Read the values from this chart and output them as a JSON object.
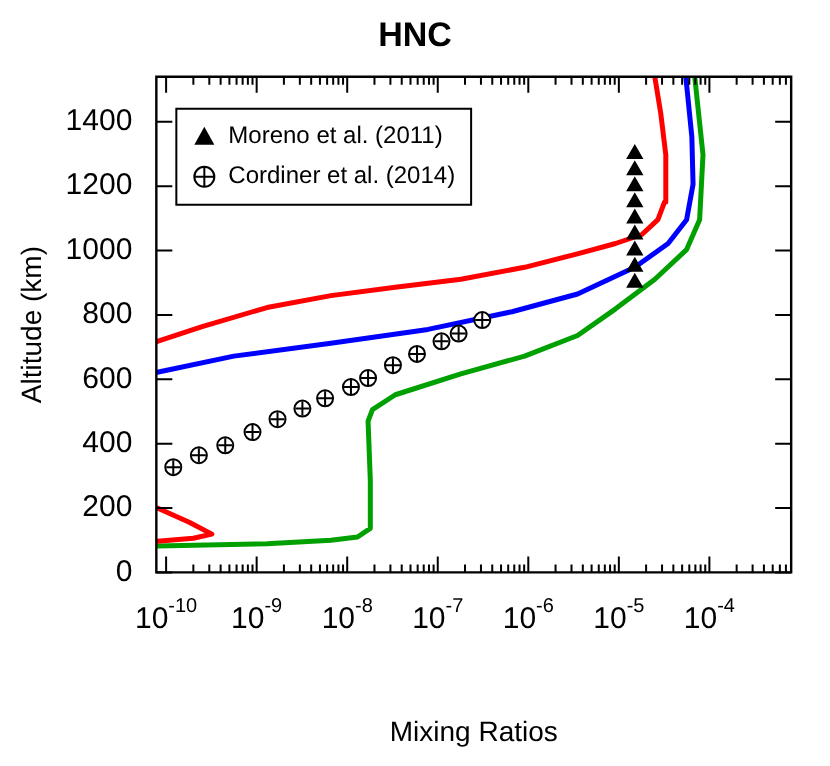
{
  "chart_data": {
    "type": "line",
    "title": "HNC",
    "xlabel": "Mixing Ratios",
    "ylabel": "Altitude (km)",
    "log": "x",
    "xlim": [
      7.8e-11,
      0.0008
    ],
    "ylim": [
      0,
      1540
    ],
    "xticks": [
      {
        "value": 1e-10,
        "label": "10$^{-10}$"
      },
      {
        "value": 2e-10,
        "label": null
      },
      {
        "value": 3e-10,
        "label": null
      },
      {
        "value": 4e-10,
        "label": null
      },
      {
        "value": 5e-10,
        "label": null
      },
      {
        "value": 6e-10,
        "label": null
      },
      {
        "value": 7e-10,
        "label": null
      },
      {
        "value": 8e-10,
        "label": null
      },
      {
        "value": 9e-10,
        "label": null
      },
      {
        "value": 1e-09,
        "label": "10$^{-9}$"
      },
      {
        "value": 2e-09,
        "label": null
      },
      {
        "value": 3e-09,
        "label": null
      },
      {
        "value": 4e-09,
        "label": null
      },
      {
        "value": 5e-09,
        "label": null
      },
      {
        "value": 6e-09,
        "label": null
      },
      {
        "value": 7e-09,
        "label": null
      },
      {
        "value": 8e-09,
        "label": null
      },
      {
        "value": 9e-09,
        "label": null
      },
      {
        "value": 1e-08,
        "label": "10$^{-8}$"
      },
      {
        "value": 2e-08,
        "label": null
      },
      {
        "value": 3e-08,
        "label": null
      },
      {
        "value": 4e-08,
        "label": null
      },
      {
        "value": 5e-08,
        "label": null
      },
      {
        "value": 6e-08,
        "label": null
      },
      {
        "value": 7e-08,
        "label": null
      },
      {
        "value": 8e-08,
        "label": null
      },
      {
        "value": 9e-08,
        "label": null
      },
      {
        "value": 1e-07,
        "label": "10$^{-7}$"
      },
      {
        "value": 2e-07,
        "label": null
      },
      {
        "value": 3e-07,
        "label": null
      },
      {
        "value": 4e-07,
        "label": null
      },
      {
        "value": 5e-07,
        "label": null
      },
      {
        "value": 6e-07,
        "label": null
      },
      {
        "value": 7e-07,
        "label": null
      },
      {
        "value": 8e-07,
        "label": null
      },
      {
        "value": 9e-07,
        "label": null
      },
      {
        "value": 1e-06,
        "label": "10$^{-6}$"
      },
      {
        "value": 2e-06,
        "label": null
      },
      {
        "value": 3e-06,
        "label": null
      },
      {
        "value": 4e-06,
        "label": null
      },
      {
        "value": 5e-06,
        "label": null
      },
      {
        "value": 6e-06,
        "label": null
      },
      {
        "value": 7e-06,
        "label": null
      },
      {
        "value": 8e-06,
        "label": null
      },
      {
        "value": 9e-06,
        "label": null
      },
      {
        "value": 1e-05,
        "label": "10$^{-5}$"
      },
      {
        "value": 2e-05,
        "label": null
      },
      {
        "value": 3e-05,
        "label": null
      },
      {
        "value": 4e-05,
        "label": null
      },
      {
        "value": 5e-05,
        "label": null
      },
      {
        "value": 6e-05,
        "label": null
      },
      {
        "value": 7e-05,
        "label": null
      },
      {
        "value": 8e-05,
        "label": null
      },
      {
        "value": 9e-05,
        "label": null
      },
      {
        "value": 0.0001,
        "label": "10$^{-4}$"
      },
      {
        "value": 0.0002,
        "label": null
      },
      {
        "value": 0.0003,
        "label": null
      },
      {
        "value": 0.0004,
        "label": null
      },
      {
        "value": 0.0005,
        "label": null
      },
      {
        "value": 0.0006,
        "label": null
      },
      {
        "value": 0.0007,
        "label": null
      }
    ],
    "yticks": [
      0,
      200,
      400,
      600,
      800,
      1000,
      1200,
      1400
    ],
    "grid": false,
    "legend": "top left",
    "line_style": "solid",
    "marker": "none",
    "series": [
      {
        "type": "line",
        "color": "#ff0000",
        "x": [
          8e-11,
          1.8e-10,
          3.2e-10,
          2e-10,
          8e-11
        ],
        "values": [
          200,
          156,
          119,
          106,
          97
        ]
      },
      {
        "type": "line",
        "color": "#ff0000",
        "x": [
          8e-11,
          2.5e-10,
          1.3e-09,
          6.6e-09,
          3.4e-08,
          1.8e-07,
          9.1e-07,
          3.4e-06,
          9.2e-06,
          1.8e-05,
          2.7e-05,
          3.2e-05,
          3.3e-05,
          2.9e-05,
          2.5e-05
        ],
        "values": [
          718,
          764,
          823,
          860,
          886,
          911,
          948,
          989,
          1022,
          1050,
          1096,
          1151,
          1298,
          1427,
          1538
        ]
      },
      {
        "type": "line",
        "color": "#0000ff",
        "x": [
          8e-11,
          5.6e-10,
          6.6e-09,
          7.8e-08,
          6.6e-07,
          3.5e-06,
          1.5e-05,
          3.5e-05,
          5.6e-05,
          6.6e-05,
          6.4e-05,
          5.5e-05
        ],
        "values": [
          622,
          672,
          712,
          755,
          810,
          865,
          948,
          1022,
          1096,
          1206,
          1354,
          1538
        ]
      },
      {
        "type": "line",
        "color": "#00a000",
        "x": [
          8e-11,
          1.3e-09,
          6.6e-09,
          1.3e-08,
          1.8e-08,
          1.8e-08,
          1.7e-08,
          1.9e-08,
          3.4e-08,
          1.8e-07,
          9.1e-07,
          3.5e-06,
          9.2e-06,
          2.5e-05,
          5.6e-05,
          7.8e-05,
          8.5e-05,
          6.9e-05
        ],
        "values": [
          82,
          89,
          100,
          110,
          137,
          285,
          470,
          506,
          552,
          617,
          672,
          736,
          819,
          911,
          1003,
          1096,
          1298,
          1538
        ]
      },
      {
        "type": "scatter",
        "name": "Moreno et al. (2011)",
        "color": "#000000",
        "marker": "triangle",
        "x": [
          1.5e-05,
          1.5e-05,
          1.5e-05,
          1.5e-05,
          1.5e-05,
          1.5e-05,
          1.5e-05,
          1.5e-05,
          1.5e-05
        ],
        "values": [
          1300,
          1250,
          1200,
          1150,
          1100,
          1050,
          1000,
          950,
          900
        ]
      },
      {
        "type": "scatter",
        "name": "Cordiner et al. (2014)",
        "color": "#000000",
        "marker": "circle",
        "x": [
          1.2e-10,
          2.3e-10,
          4.5e-10,
          9e-10,
          1.7e-09,
          3.2e-09,
          5.7e-09,
          1.1e-08,
          1.7e-08,
          3.2e-08,
          5.9e-08,
          1.1e-07,
          1.7e-07,
          3.1e-07
        ],
        "values": [
          327,
          364,
          395,
          436,
          476,
          509,
          541,
          576,
          604,
          644,
          679,
          718,
          742,
          784
        ]
      }
    ]
  }
}
